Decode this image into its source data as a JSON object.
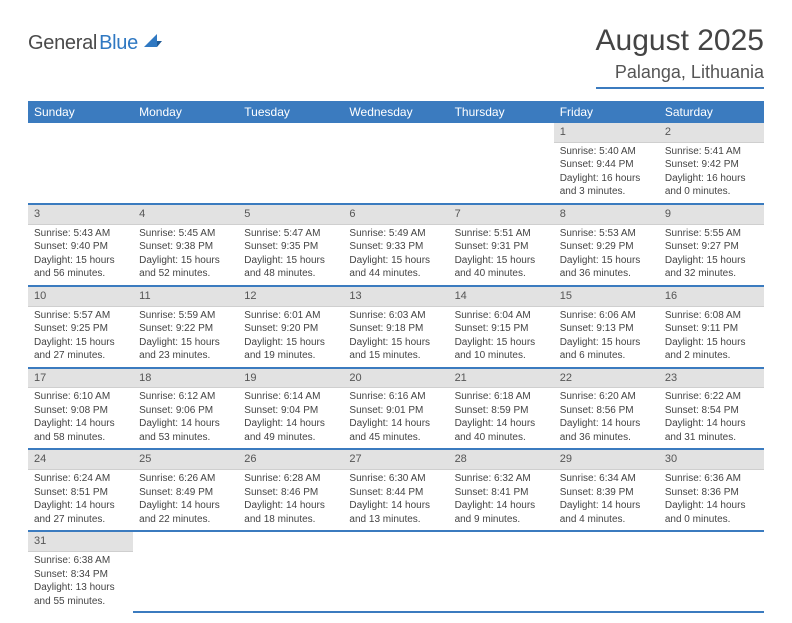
{
  "brand": {
    "name1": "General",
    "name2": "Blue"
  },
  "title": "August 2025",
  "location": "Palanga, Lithuania",
  "colors": {
    "header_bg": "#3b7bbf",
    "header_fg": "#ffffff",
    "daynum_bg": "#e2e2e2",
    "text": "#444444",
    "rule": "#3b7bbf"
  },
  "weekdays": [
    "Sunday",
    "Monday",
    "Tuesday",
    "Wednesday",
    "Thursday",
    "Friday",
    "Saturday"
  ],
  "weeks": [
    [
      null,
      null,
      null,
      null,
      null,
      {
        "n": "1",
        "sunrise": "5:40 AM",
        "sunset": "9:44 PM",
        "dl_h": 16,
        "dl_m": 3
      },
      {
        "n": "2",
        "sunrise": "5:41 AM",
        "sunset": "9:42 PM",
        "dl_h": 16,
        "dl_m": 0
      }
    ],
    [
      {
        "n": "3",
        "sunrise": "5:43 AM",
        "sunset": "9:40 PM",
        "dl_h": 15,
        "dl_m": 56
      },
      {
        "n": "4",
        "sunrise": "5:45 AM",
        "sunset": "9:38 PM",
        "dl_h": 15,
        "dl_m": 52
      },
      {
        "n": "5",
        "sunrise": "5:47 AM",
        "sunset": "9:35 PM",
        "dl_h": 15,
        "dl_m": 48
      },
      {
        "n": "6",
        "sunrise": "5:49 AM",
        "sunset": "9:33 PM",
        "dl_h": 15,
        "dl_m": 44
      },
      {
        "n": "7",
        "sunrise": "5:51 AM",
        "sunset": "9:31 PM",
        "dl_h": 15,
        "dl_m": 40
      },
      {
        "n": "8",
        "sunrise": "5:53 AM",
        "sunset": "9:29 PM",
        "dl_h": 15,
        "dl_m": 36
      },
      {
        "n": "9",
        "sunrise": "5:55 AM",
        "sunset": "9:27 PM",
        "dl_h": 15,
        "dl_m": 32
      }
    ],
    [
      {
        "n": "10",
        "sunrise": "5:57 AM",
        "sunset": "9:25 PM",
        "dl_h": 15,
        "dl_m": 27
      },
      {
        "n": "11",
        "sunrise": "5:59 AM",
        "sunset": "9:22 PM",
        "dl_h": 15,
        "dl_m": 23
      },
      {
        "n": "12",
        "sunrise": "6:01 AM",
        "sunset": "9:20 PM",
        "dl_h": 15,
        "dl_m": 19
      },
      {
        "n": "13",
        "sunrise": "6:03 AM",
        "sunset": "9:18 PM",
        "dl_h": 15,
        "dl_m": 15
      },
      {
        "n": "14",
        "sunrise": "6:04 AM",
        "sunset": "9:15 PM",
        "dl_h": 15,
        "dl_m": 10
      },
      {
        "n": "15",
        "sunrise": "6:06 AM",
        "sunset": "9:13 PM",
        "dl_h": 15,
        "dl_m": 6
      },
      {
        "n": "16",
        "sunrise": "6:08 AM",
        "sunset": "9:11 PM",
        "dl_h": 15,
        "dl_m": 2
      }
    ],
    [
      {
        "n": "17",
        "sunrise": "6:10 AM",
        "sunset": "9:08 PM",
        "dl_h": 14,
        "dl_m": 58
      },
      {
        "n": "18",
        "sunrise": "6:12 AM",
        "sunset": "9:06 PM",
        "dl_h": 14,
        "dl_m": 53
      },
      {
        "n": "19",
        "sunrise": "6:14 AM",
        "sunset": "9:04 PM",
        "dl_h": 14,
        "dl_m": 49
      },
      {
        "n": "20",
        "sunrise": "6:16 AM",
        "sunset": "9:01 PM",
        "dl_h": 14,
        "dl_m": 45
      },
      {
        "n": "21",
        "sunrise": "6:18 AM",
        "sunset": "8:59 PM",
        "dl_h": 14,
        "dl_m": 40
      },
      {
        "n": "22",
        "sunrise": "6:20 AM",
        "sunset": "8:56 PM",
        "dl_h": 14,
        "dl_m": 36
      },
      {
        "n": "23",
        "sunrise": "6:22 AM",
        "sunset": "8:54 PM",
        "dl_h": 14,
        "dl_m": 31
      }
    ],
    [
      {
        "n": "24",
        "sunrise": "6:24 AM",
        "sunset": "8:51 PM",
        "dl_h": 14,
        "dl_m": 27
      },
      {
        "n": "25",
        "sunrise": "6:26 AM",
        "sunset": "8:49 PM",
        "dl_h": 14,
        "dl_m": 22
      },
      {
        "n": "26",
        "sunrise": "6:28 AM",
        "sunset": "8:46 PM",
        "dl_h": 14,
        "dl_m": 18
      },
      {
        "n": "27",
        "sunrise": "6:30 AM",
        "sunset": "8:44 PM",
        "dl_h": 14,
        "dl_m": 13
      },
      {
        "n": "28",
        "sunrise": "6:32 AM",
        "sunset": "8:41 PM",
        "dl_h": 14,
        "dl_m": 9
      },
      {
        "n": "29",
        "sunrise": "6:34 AM",
        "sunset": "8:39 PM",
        "dl_h": 14,
        "dl_m": 4
      },
      {
        "n": "30",
        "sunrise": "6:36 AM",
        "sunset": "8:36 PM",
        "dl_h": 14,
        "dl_m": 0
      }
    ],
    [
      {
        "n": "31",
        "sunrise": "6:38 AM",
        "sunset": "8:34 PM",
        "dl_h": 13,
        "dl_m": 55
      },
      null,
      null,
      null,
      null,
      null,
      null
    ]
  ]
}
